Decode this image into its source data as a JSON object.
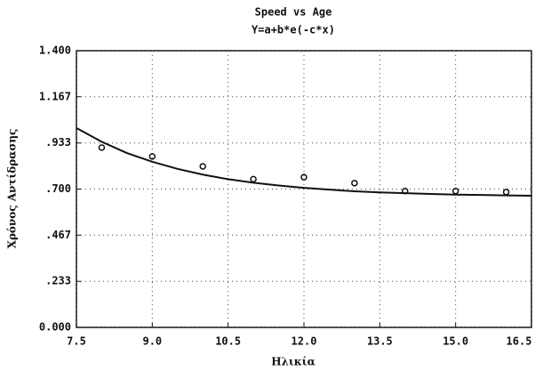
{
  "chart_data": {
    "type": "scatter",
    "title": "Speed vs Age",
    "subtitle": "Y=a+b*e(-c*x)",
    "x_label": "Ηλικία",
    "y_label": "Χρόνος Αντίδρασης",
    "x": [
      8,
      9,
      10,
      11,
      12,
      13,
      14,
      15,
      16
    ],
    "values": [
      0.91,
      0.865,
      0.815,
      0.75,
      0.76,
      0.73,
      0.69,
      0.69,
      0.685
    ],
    "color": "#111111",
    "fit": {
      "type": "line",
      "x": [
        7.5,
        8,
        8.5,
        9,
        9.5,
        10,
        10.5,
        11,
        11.5,
        12,
        12.5,
        13,
        13.5,
        14,
        14.5,
        15,
        15.5,
        16,
        16.5
      ],
      "values": [
        1.009,
        0.939,
        0.882,
        0.838,
        0.802,
        0.773,
        0.75,
        0.732,
        0.718,
        0.706,
        0.697,
        0.689,
        0.683,
        0.679,
        0.675,
        0.672,
        0.67,
        0.668,
        0.666
      ],
      "color": "#111111"
    },
    "xlim": [
      7.5,
      16.5
    ],
    "ylim": [
      0,
      1.4
    ],
    "xticks": [
      7.5,
      {
        "value": 9,
        "label": "9.0"
      },
      10.5,
      {
        "value": 12,
        "label": "12.0"
      },
      13.5,
      {
        "value": 15,
        "label": "15.0"
      },
      16.5
    ],
    "yticks": [
      {
        "value": 0,
        "label": "0.000"
      },
      {
        "value": 0.233,
        "label": ".233"
      },
      {
        "value": 0.467,
        "label": ".467"
      },
      {
        "value": 0.7,
        "label": ".700"
      },
      {
        "value": 0.933,
        "label": ".933"
      },
      {
        "value": 1.167,
        "label": "1.167"
      },
      {
        "value": 1.4,
        "label": "1.400"
      }
    ],
    "grid": true
  }
}
